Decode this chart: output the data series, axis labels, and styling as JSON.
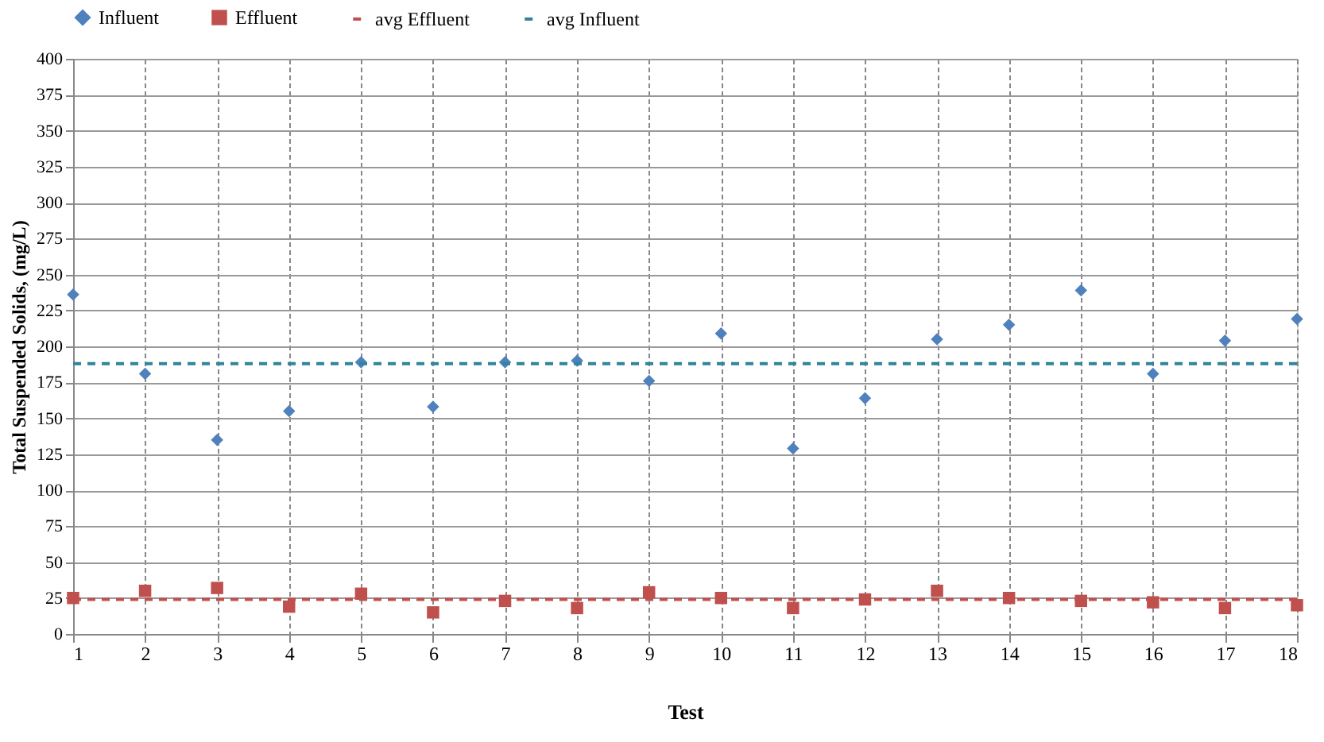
{
  "chart_data": {
    "type": "scatter",
    "xlabel": "Test",
    "ylabel": "Total Suspended Solids, (mg/L)",
    "x": [
      1,
      2,
      3,
      4,
      5,
      6,
      7,
      8,
      9,
      10,
      11,
      12,
      13,
      14,
      15,
      16,
      17,
      18
    ],
    "series": [
      {
        "name": "Influent",
        "color": "#4f81bd",
        "marker": "diamond",
        "values": [
          236,
          181,
          135,
          155,
          189,
          158,
          189,
          190,
          176,
          209,
          129,
          164,
          205,
          215,
          239,
          181,
          204,
          219
        ]
      },
      {
        "name": "Effluent",
        "color": "#c0504d",
        "marker": "square",
        "values": [
          25,
          30,
          32,
          19,
          28,
          15,
          23,
          18,
          29,
          25,
          18,
          24,
          30,
          25,
          23,
          22,
          18,
          20
        ]
      }
    ],
    "ref_lines": [
      {
        "axis": "y",
        "value": 24,
        "label": "avg Effluent",
        "color": "#c0504d",
        "line_style": "dashed"
      },
      {
        "axis": "y",
        "value": 188,
        "label": "avg Influent",
        "color": "#31849b",
        "line_style": "dashed"
      }
    ],
    "xlim": [
      1,
      18
    ],
    "xticks": [
      1,
      2,
      3,
      4,
      5,
      6,
      7,
      8,
      9,
      10,
      11,
      12,
      13,
      14,
      15,
      16,
      17,
      18
    ],
    "ylim": [
      0,
      400
    ],
    "yticks": [
      0,
      25,
      50,
      75,
      100,
      125,
      150,
      175,
      200,
      225,
      250,
      275,
      300,
      325,
      350,
      375,
      400
    ],
    "grid": true,
    "legend": "top"
  }
}
